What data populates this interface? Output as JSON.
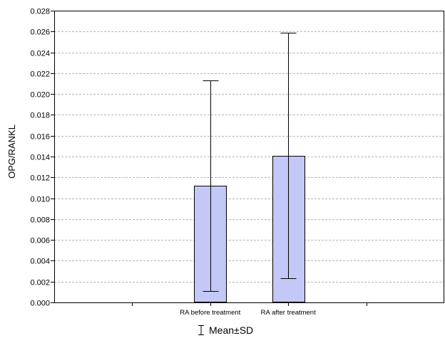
{
  "chart_data": {
    "type": "bar",
    "categories": [
      "RA before treatment",
      "RA after treatment"
    ],
    "series": [
      {
        "values": [
          0.0112,
          0.0141
        ],
        "error_low": [
          0.0011,
          0.0023
        ],
        "error_high": [
          0.0213,
          0.0259
        ]
      }
    ],
    "xlabel": "",
    "ylabel": "OPG/RANKL",
    "ylim": [
      0,
      0.028
    ],
    "yticks": [
      "0.000",
      "0.002",
      "0.004",
      "0.006",
      "0.008",
      "0.010",
      "0.012",
      "0.014",
      "0.016",
      "0.018",
      "0.020",
      "0.022",
      "0.024",
      "0.026",
      "0.028"
    ],
    "grid": true,
    "bar_color": "#c4c8f6",
    "legend_position": "bottom-center"
  },
  "legend": {
    "label": "Mean±SD"
  }
}
